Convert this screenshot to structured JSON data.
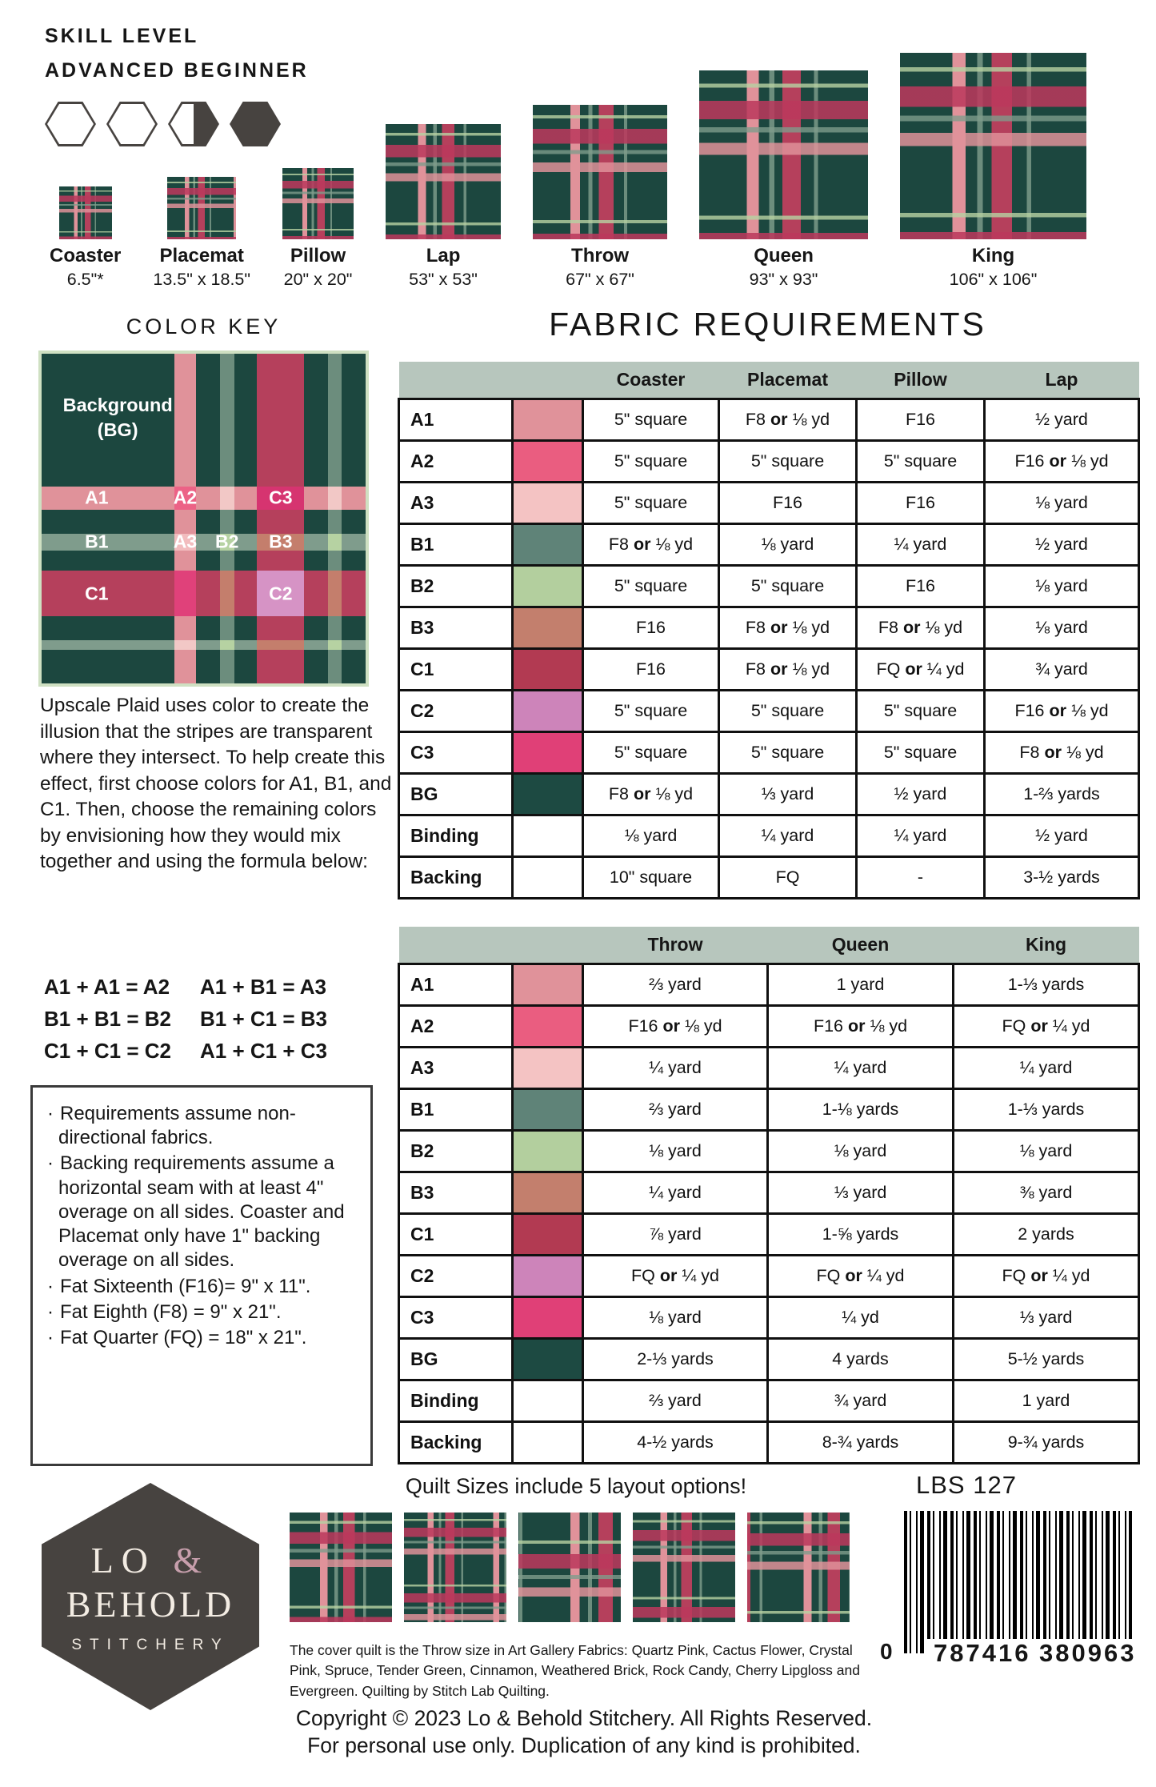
{
  "skill_level": {
    "label_line1": "SKILL LEVEL",
    "label_line2": "ADVANCED BEGINNER",
    "hexagons": [
      "empty",
      "empty",
      "half",
      "full"
    ]
  },
  "sizes": [
    {
      "name": "Coaster",
      "dims": "6.5\"*"
    },
    {
      "name": "Placemat",
      "dims": "13.5\" x 18.5\""
    },
    {
      "name": "Pillow",
      "dims": "20\" x 20\""
    },
    {
      "name": "Lap",
      "dims": "53\" x 53\""
    },
    {
      "name": "Throw",
      "dims": "67\" x 67\""
    },
    {
      "name": "Queen",
      "dims": "93\" x 93\""
    },
    {
      "name": "King",
      "dims": "106\" x 106\""
    }
  ],
  "color_key": {
    "title": "COLOR KEY",
    "background_label": "Background (BG)",
    "stripe_labels": [
      "A1",
      "A2",
      "C3",
      "B1",
      "A3",
      "B2",
      "B3",
      "C1",
      "C2"
    ],
    "colors": {
      "bg": "#1c473f",
      "a1": "#e0929a",
      "a2": "#ec6286",
      "a3": "#f2bcbe",
      "b1": "#6c8d7d",
      "b2": "#b6d2a2",
      "b3": "#c47e6c",
      "c1": "#b5405c",
      "c2": "#d693c5",
      "c3": "#d63470",
      "key_border": "#cfe0c2",
      "table_header": "#b7c6bd"
    }
  },
  "fabric_requirements": {
    "title": "FABRIC REQUIREMENTS",
    "table1": {
      "columns": [
        "Coaster",
        "Placemat",
        "Pillow",
        "Lap"
      ],
      "rows": [
        {
          "label": "A1",
          "swatch": "#e0929a",
          "values": [
            "5\" square",
            "F8 or ⅛ yd",
            "F16",
            "½ yard"
          ]
        },
        {
          "label": "A2",
          "swatch": "#ea5d80",
          "values": [
            "5\" square",
            "5\" square",
            "5\" square",
            "F16 or ⅛ yd"
          ]
        },
        {
          "label": "A3",
          "swatch": "#f4c3c3",
          "values": [
            "5\" square",
            "F16",
            "F16",
            "⅛ yard"
          ]
        },
        {
          "label": "B1",
          "swatch": "#5f8378",
          "values": [
            "F8 or ⅛ yd",
            "⅛ yard",
            "¼ yard",
            "½ yard"
          ]
        },
        {
          "label": "B2",
          "swatch": "#b3cf9e",
          "values": [
            "5\" square",
            "5\" square",
            "F16",
            "⅛ yard"
          ]
        },
        {
          "label": "B3",
          "swatch": "#c37f6d",
          "values": [
            "F16",
            "F8 or ⅛ yd",
            "F8 or ⅛ yd",
            "⅛ yard"
          ]
        },
        {
          "label": "C1",
          "swatch": "#b23a52",
          "values": [
            "F16",
            "F8 or ⅛ yd",
            "FQ or ¼ yd",
            "¾ yard"
          ]
        },
        {
          "label": "C2",
          "swatch": "#cd84ba",
          "values": [
            "5\" square",
            "5\" square",
            "5\" square",
            "F16 or ⅛ yd"
          ]
        },
        {
          "label": "C3",
          "swatch": "#e04077",
          "values": [
            "5\" square",
            "5\" square",
            "5\" square",
            "F8 or ⅛ yd"
          ]
        },
        {
          "label": "BG",
          "swatch": "#1d4a42",
          "values": [
            "F8 or ⅛ yd",
            "⅓ yard",
            "½ yard",
            "1-⅔ yards"
          ]
        },
        {
          "label": "Binding",
          "swatch": null,
          "values": [
            "⅛ yard",
            "¼ yard",
            "¼ yard",
            "½ yard"
          ]
        },
        {
          "label": "Backing",
          "swatch": null,
          "values": [
            "10\" square",
            "FQ",
            "-",
            "3-½ yards"
          ]
        }
      ]
    },
    "table2": {
      "columns": [
        "Throw",
        "Queen",
        "King"
      ],
      "rows": [
        {
          "label": "A1",
          "swatch": "#e0929a",
          "values": [
            "⅔ yard",
            "1 yard",
            "1-⅓ yards"
          ]
        },
        {
          "label": "A2",
          "swatch": "#ea5d80",
          "values": [
            "F16 or ⅛ yd",
            "F16 or ⅛ yd",
            "FQ or ¼ yd"
          ]
        },
        {
          "label": "A3",
          "swatch": "#f4c3c3",
          "values": [
            "¼ yard",
            "¼ yard",
            "¼ yard"
          ]
        },
        {
          "label": "B1",
          "swatch": "#5f8378",
          "values": [
            "⅔ yard",
            "1-⅛ yards",
            "1-⅓ yards"
          ]
        },
        {
          "label": "B2",
          "swatch": "#b3cf9e",
          "values": [
            "⅛ yard",
            "⅛ yard",
            "⅛ yard"
          ]
        },
        {
          "label": "B3",
          "swatch": "#c37f6d",
          "values": [
            "¼ yard",
            "⅓ yard",
            "⅜ yard"
          ]
        },
        {
          "label": "C1",
          "swatch": "#b23a52",
          "values": [
            "⅞ yard",
            "1-⅝ yards",
            "2 yards"
          ]
        },
        {
          "label": "C2",
          "swatch": "#cd84ba",
          "values": [
            "FQ or ¼ yd",
            "FQ or ¼ yd",
            "FQ or ¼ yd"
          ]
        },
        {
          "label": "C3",
          "swatch": "#e04077",
          "values": [
            "⅛ yard",
            "¼ yd",
            "⅓ yard"
          ]
        },
        {
          "label": "BG",
          "swatch": "#1d4a42",
          "values": [
            "2-⅓ yards",
            "4 yards",
            "5-½ yards"
          ]
        },
        {
          "label": "Binding",
          "swatch": null,
          "values": [
            "⅔ yard",
            "¾ yard",
            "1 yard"
          ]
        },
        {
          "label": "Backing",
          "swatch": null,
          "values": [
            "4-½ yards",
            "8-¾ yards",
            "9-¾ yards"
          ]
        }
      ]
    }
  },
  "description": "Upscale Plaid uses color to create the illusion that the stripes are transparent where they intersect. To help create this effect, first choose colors for A1, B1, and C1. Then, choose the remaining colors by envisioning how they would mix together and using the formula below:",
  "formulas": [
    "A1 + A1 = A2",
    "A1 + B1 = A3",
    "B1 + B1 = B2",
    "B1 + C1 = B3",
    "C1 + C1 = C2",
    "A1 + C1 + C3"
  ],
  "notes": [
    "Requirements assume non-directional fabrics.",
    "Backing requirements assume a horizontal seam with at least 4\" overage on all sides. Coaster and Placemat only have 1\" backing overage on all sides.",
    "Fat Sixteenth (F16)= 9\" x 11\".",
    "Fat Eighth (F8) = 9\" x 21\".",
    "Fat Quarter (FQ) = 18\" x 21\"."
  ],
  "footer": {
    "layouts_note": "Quilt Sizes include 5 layout options!",
    "sku": "LBS 127",
    "barcode": {
      "lead_digit": "0",
      "group1": "787416",
      "group2": "380963"
    },
    "cover_note": "The cover quilt is the Throw size in Art Gallery Fabrics: Quartz Pink, Cactus Flower, Crystal Pink, Spruce, Tender Green, Cinnamon, Weathered Brick, Rock Candy, Cherry Lipgloss and Evergreen. Quilting by Stitch Lab Quilting.",
    "copyright_line1": "Copyright © 2023 Lo & Behold Stitchery. All Rights Reserved.",
    "copyright_line2": "For personal use only. Duplication of any kind is prohibited.",
    "logo": {
      "line1": "LO",
      "amp": "&",
      "line2": "BEHOLD",
      "line3": "STITCHERY"
    }
  }
}
